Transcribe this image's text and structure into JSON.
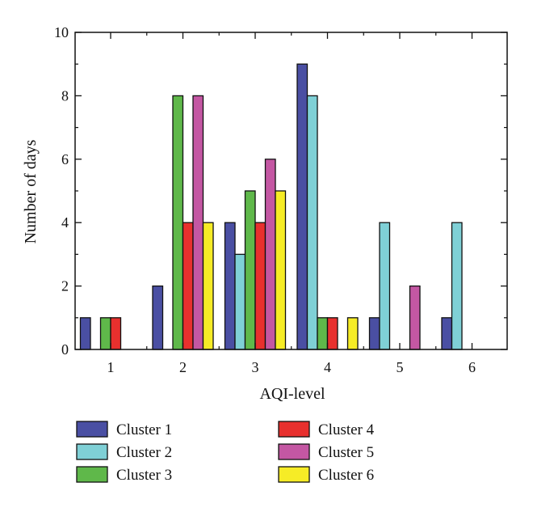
{
  "chart_data": {
    "type": "bar",
    "xlabel": "AQI-level",
    "ylabel": "Number of days",
    "categories": [
      "1",
      "2",
      "3",
      "4",
      "5",
      "6"
    ],
    "ylim": [
      0,
      10
    ],
    "yticks": [
      0,
      2,
      4,
      6,
      8,
      10
    ],
    "grid": false,
    "legend_position": "bottom",
    "series": [
      {
        "name": "Cluster 1",
        "color": "#4a4fa3",
        "values": [
          1,
          2,
          4,
          9,
          1,
          1
        ]
      },
      {
        "name": "Cluster 2",
        "color": "#7fd0d6",
        "values": [
          0,
          0,
          3,
          8,
          4,
          4
        ]
      },
      {
        "name": "Cluster 3",
        "color": "#5fb84a",
        "values": [
          1,
          8,
          5,
          1,
          0,
          0
        ]
      },
      {
        "name": "Cluster 4",
        "color": "#e8302e",
        "values": [
          1,
          4,
          4,
          1,
          0,
          0
        ]
      },
      {
        "name": "Cluster 5",
        "color": "#c457a3",
        "values": [
          0,
          8,
          6,
          0,
          2,
          0
        ]
      },
      {
        "name": "Cluster 6",
        "color": "#f6ec26",
        "values": [
          0,
          4,
          5,
          1,
          0,
          0
        ]
      }
    ]
  }
}
